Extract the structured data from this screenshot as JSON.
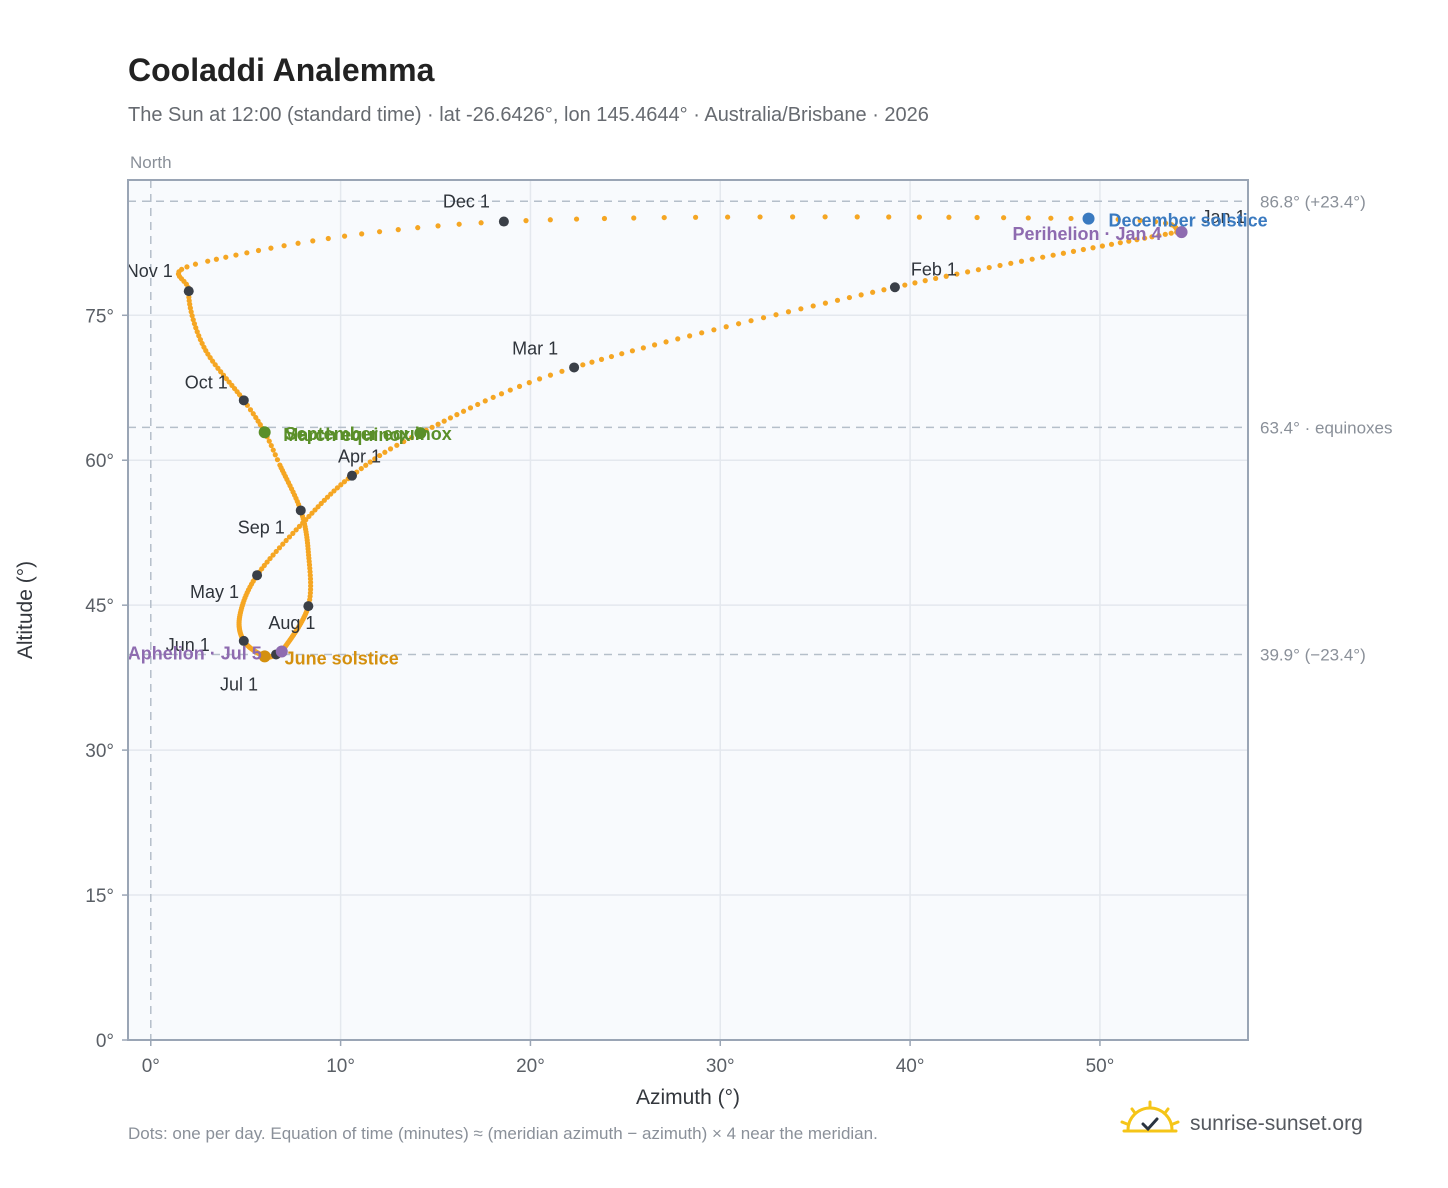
{
  "title": "Cooladdi Analemma",
  "subtitle": "The Sun at 12:00 (standard time) · lat -26.6426°, lon 145.4644° · Australia/Brisbane · 2026",
  "footnote": "Dots: one per day. Equation of time (minutes) ≈ (meridian azimuth − azimuth) × 4 near the meridian.",
  "brand": {
    "text": "sunrise-sunset.org",
    "icon": "sun-logo-icon"
  },
  "colors": {
    "path": "#f5a623",
    "month_marker": "#3a3f47",
    "equinox": "#5a8f29",
    "june_solstice": "#d4900f",
    "december_solstice": "#3a7ac0",
    "apsis": "#8e6bb0",
    "reference": "#b5bfca",
    "plot_bg": "#f8fafd",
    "grid": "#e4e8ee",
    "frame": "#9aa5b5"
  },
  "chart_data": {
    "type": "scatter",
    "title": "Cooladdi Analemma",
    "xlabel": "Azimuth (°)",
    "ylabel": "Altitude (°)",
    "xlim": [
      -1.2,
      57.8
    ],
    "ylim": [
      0,
      89
    ],
    "x_ticks": [
      0,
      10,
      20,
      30,
      40,
      50
    ],
    "x_tick_labels": [
      "0°",
      "10°",
      "20°",
      "30°",
      "40°",
      "50°"
    ],
    "y_ticks": [
      0,
      15,
      30,
      45,
      60,
      75
    ],
    "y_tick_labels": [
      "0°",
      "15°",
      "30°",
      "45°",
      "60°",
      "75°"
    ],
    "grid": true,
    "north_label": "North",
    "reference_lines": [
      {
        "y": 86.8,
        "label": "86.8° (+23.4°)"
      },
      {
        "y": 63.4,
        "label": "63.4° · equinoxes"
      },
      {
        "y": 39.9,
        "label": "39.9° (−23.4°)"
      }
    ],
    "path_control_points": [
      {
        "doy": 0,
        "x": 54.3,
        "y": 83.7
      },
      {
        "doy": 31,
        "x": 39.2,
        "y": 77.9
      },
      {
        "doy": 59,
        "x": 22.3,
        "y": 69.6
      },
      {
        "doy": 78,
        "x": 14.2,
        "y": 62.8
      },
      {
        "doy": 90,
        "x": 10.6,
        "y": 58.4
      },
      {
        "doy": 105,
        "x": 8.0,
        "y": 53.5
      },
      {
        "doy": 120,
        "x": 5.6,
        "y": 48.1
      },
      {
        "doy": 135,
        "x": 4.7,
        "y": 44.0
      },
      {
        "doy": 151,
        "x": 4.9,
        "y": 41.3
      },
      {
        "doy": 171,
        "x": 6.0,
        "y": 39.7
      },
      {
        "doy": 181,
        "x": 6.6,
        "y": 39.9
      },
      {
        "doy": 185,
        "x": 6.9,
        "y": 40.2
      },
      {
        "doy": 212,
        "x": 8.3,
        "y": 44.9
      },
      {
        "doy": 228,
        "x": 8.3,
        "y": 50.5
      },
      {
        "doy": 243,
        "x": 7.9,
        "y": 54.8
      },
      {
        "doy": 258,
        "x": 6.8,
        "y": 59.5
      },
      {
        "doy": 265,
        "x": 6.0,
        "y": 62.9
      },
      {
        "doy": 273,
        "x": 4.9,
        "y": 66.2
      },
      {
        "doy": 289,
        "x": 2.8,
        "y": 71.7
      },
      {
        "doy": 304,
        "x": 2.0,
        "y": 77.5
      },
      {
        "doy": 315,
        "x": 3.0,
        "y": 80.6
      },
      {
        "doy": 334,
        "x": 18.6,
        "y": 84.7
      },
      {
        "doy": 355,
        "x": 49.4,
        "y": 85.0
      },
      {
        "doy": 365,
        "x": 54.3,
        "y": 83.7
      }
    ],
    "month_markers": [
      {
        "label": "Jan 1",
        "x": 54.3,
        "y": 83.7
      },
      {
        "label": "Feb 1",
        "x": 39.2,
        "y": 77.9
      },
      {
        "label": "Mar 1",
        "x": 22.3,
        "y": 69.6
      },
      {
        "label": "Apr 1",
        "x": 10.6,
        "y": 58.4
      },
      {
        "label": "May 1",
        "x": 5.6,
        "y": 48.1
      },
      {
        "label": "Jun 1",
        "x": 4.9,
        "y": 41.3
      },
      {
        "label": "Jul 1",
        "x": 6.6,
        "y": 39.9
      },
      {
        "label": "Aug 1",
        "x": 8.3,
        "y": 44.9
      },
      {
        "label": "Sep 1",
        "x": 7.9,
        "y": 54.8
      },
      {
        "label": "Oct 1",
        "x": 4.9,
        "y": 66.2
      },
      {
        "label": "Nov 1",
        "x": 2.0,
        "y": 77.5
      },
      {
        "label": "Dec 1",
        "x": 18.6,
        "y": 84.7
      }
    ],
    "events": [
      {
        "label": "March equinox",
        "x": 14.2,
        "y": 62.8,
        "color": "#5a8f29"
      },
      {
        "label": "September equinox",
        "x": 6.0,
        "y": 62.9,
        "color": "#5a8f29"
      },
      {
        "label": "June solstice",
        "x": 6.0,
        "y": 39.7,
        "color": "#d4900f"
      },
      {
        "label": "December solstice",
        "x": 49.4,
        "y": 85.0,
        "color": "#3a7ac0"
      },
      {
        "label": "Perihelion · Jan 4",
        "x": 54.3,
        "y": 83.6,
        "color": "#8e6bb0"
      },
      {
        "label": "Aphelion · Jul 5",
        "x": 6.9,
        "y": 40.2,
        "color": "#8e6bb0"
      }
    ]
  }
}
